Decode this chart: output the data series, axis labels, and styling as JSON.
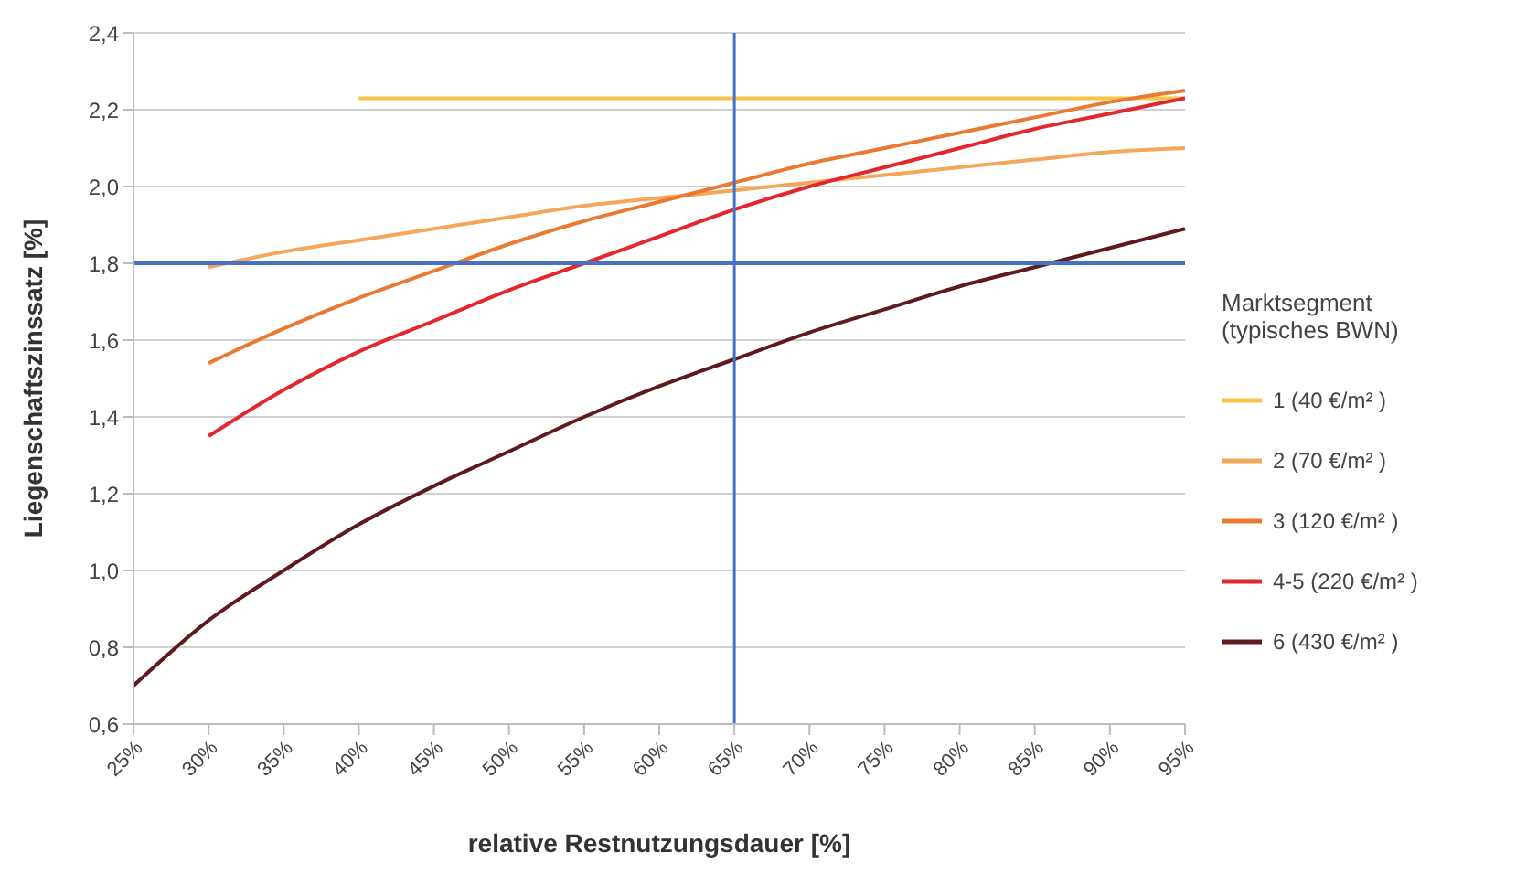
{
  "chart_data": {
    "type": "line",
    "xlabel": "relative Restnutzungsdauer [%]",
    "ylabel": "Liegenschaftszinssatz [%]",
    "legend_title": "Marktsegment\n(typisches BWN)",
    "legend": "right",
    "grid": "y",
    "marker": "none",
    "line_style": "solid",
    "categories": [
      "25%",
      "30%",
      "35%",
      "40%",
      "45%",
      "50%",
      "55%",
      "60%",
      "65%",
      "70%",
      "75%",
      "80%",
      "85%",
      "90%",
      "95%"
    ],
    "ylim": [
      0.6,
      2.4
    ],
    "yticks": [
      {
        "value": 0.6,
        "label": "0,6"
      },
      {
        "value": 0.8,
        "label": "0,8"
      },
      {
        "value": 1.0,
        "label": "1,0"
      },
      {
        "value": 1.2,
        "label": "1,2"
      },
      {
        "value": 1.4,
        "label": "1,4"
      },
      {
        "value": 1.6,
        "label": "1,6"
      },
      {
        "value": 1.8,
        "label": "1,8"
      },
      {
        "value": 2.0,
        "label": "2,0"
      },
      {
        "value": 2.2,
        "label": "2,2"
      },
      {
        "value": 2.4,
        "label": "2,4"
      }
    ],
    "series": [
      {
        "name": "1 (40 €/m² )",
        "color": "#f8c349",
        "values": [
          null,
          null,
          null,
          2.23,
          2.23,
          2.23,
          2.23,
          2.23,
          2.23,
          2.23,
          2.23,
          2.23,
          2.23,
          2.23,
          2.23
        ]
      },
      {
        "name": "2 (70 €/m² )",
        "color": "#f2a75a",
        "values": [
          null,
          1.79,
          1.83,
          1.86,
          1.89,
          1.92,
          1.95,
          1.97,
          1.99,
          2.01,
          2.03,
          2.05,
          2.07,
          2.09,
          2.1
        ]
      },
      {
        "name": "3 (120 €/m² )",
        "color": "#e97a34",
        "values": [
          null,
          1.54,
          1.63,
          1.71,
          1.78,
          1.85,
          1.91,
          1.96,
          2.01,
          2.06,
          2.1,
          2.14,
          2.18,
          2.22,
          2.25
        ]
      },
      {
        "name": "4-5 (220 €/m² )",
        "color": "#e2282d",
        "values": [
          null,
          1.35,
          1.47,
          1.57,
          1.65,
          1.73,
          1.8,
          1.87,
          1.94,
          2.0,
          2.05,
          2.1,
          2.15,
          2.19,
          2.23
        ]
      },
      {
        "name": "6 (430 €/m² )",
        "color": "#5e1a1c",
        "values": [
          0.7,
          0.87,
          1.0,
          1.12,
          1.22,
          1.31,
          1.4,
          1.48,
          1.55,
          1.62,
          1.68,
          1.74,
          1.79,
          1.84,
          1.89
        ]
      }
    ],
    "ref_lines": [
      {
        "axis": "y",
        "value": 1.8,
        "color": "#4472c4"
      },
      {
        "axis": "x",
        "value": "65%",
        "color": "#4472c4"
      }
    ]
  }
}
